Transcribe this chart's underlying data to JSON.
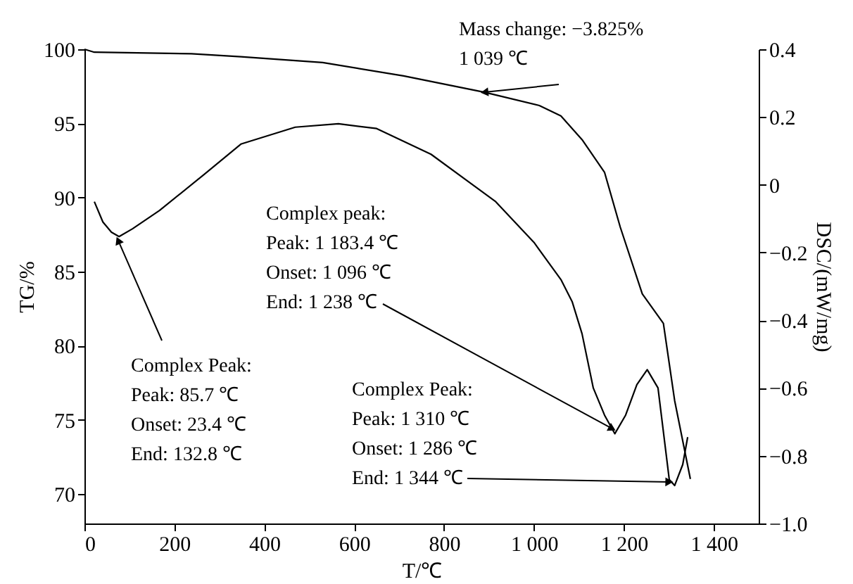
{
  "chart_data": {
    "type": "line",
    "xlabel": "T/℃",
    "ylabel": "TG/%",
    "y2label": "DSC/(mW/mg)",
    "xlim": [
      0,
      1500
    ],
    "xticks": [
      0,
      200,
      400,
      600,
      800,
      {
        "value": 1000,
        "label": "1 000"
      },
      {
        "value": 1200,
        "label": "1 200"
      },
      {
        "value": 1400,
        "label": "1 400"
      }
    ],
    "ylim": [
      68,
      100
    ],
    "yticks": [
      70,
      75,
      80,
      85,
      90,
      95,
      100
    ],
    "y2lim": [
      -1.0,
      0.4
    ],
    "y2ticks": [
      {
        "value": -1.0,
        "label": "−1.0"
      },
      {
        "value": -0.8,
        "label": "−0.8"
      },
      {
        "value": -0.6,
        "label": "−0.6"
      },
      {
        "value": -0.4,
        "label": "−0.4"
      },
      {
        "value": -0.2,
        "label": "−0.2"
      },
      0,
      0.2,
      0.4
    ],
    "grid": false,
    "line_style": "solid",
    "series": [
      {
        "color": "#000000",
        "x": [
          0,
          22,
          238,
          348,
          530,
          710,
          890,
          1012,
          1060,
          1107,
          1157,
          1192,
          1241,
          1288,
          1313,
          1348
        ],
        "values": [
          100.0,
          99.8,
          99.7,
          99.5,
          99.1,
          98.2,
          97.1,
          96.2,
          95.5,
          93.9,
          91.7,
          88.0,
          83.5,
          81.5,
          76.3,
          71.0
        ]
      },
      {
        "color": "#000000",
        "axis": "y2",
        "x": [
          22,
          41,
          60,
          77,
          107,
          167,
          263,
          348,
          469,
          565,
          650,
          771,
          915,
          1000,
          1060,
          1085,
          1107,
          1132,
          1157,
          1180,
          1204,
          1229,
          1252,
          1276,
          1301,
          1313,
          1331,
          1342
        ],
        "values": [
          -0.05,
          -0.11,
          -0.14,
          -0.153,
          -0.13,
          -0.076,
          0.027,
          0.12,
          0.17,
          0.18,
          0.166,
          0.09,
          -0.05,
          -0.17,
          -0.28,
          -0.345,
          -0.44,
          -0.6,
          -0.68,
          -0.735,
          -0.68,
          -0.59,
          -0.546,
          -0.6,
          -0.87,
          -0.888,
          -0.826,
          -0.745
        ]
      }
    ],
    "annotations": [
      {
        "text": "Mass change: −3.825%\n1 039  ℃",
        "x": 890,
        "y": 97.1
      },
      {
        "text": "Complex peak:\nPeak:   1 183.4 ℃\nOnset: 1 096 ℃\nEnd:    1 238 ℃",
        "x": 1174,
        "y": 74.4
      },
      {
        "text": "Complex Peak:\nPeak:   85.7 ℃\nOnset: 23.4 ℃\nEnd:    132.8 ℃",
        "x": 75,
        "y": 87.1
      },
      {
        "text": "Complex Peak:\nPeak:   1 310 ℃\nOnset:  1 286 ℃\nEnd:     1 344 ℃",
        "x": 1301,
        "y": 70.8
      }
    ]
  }
}
